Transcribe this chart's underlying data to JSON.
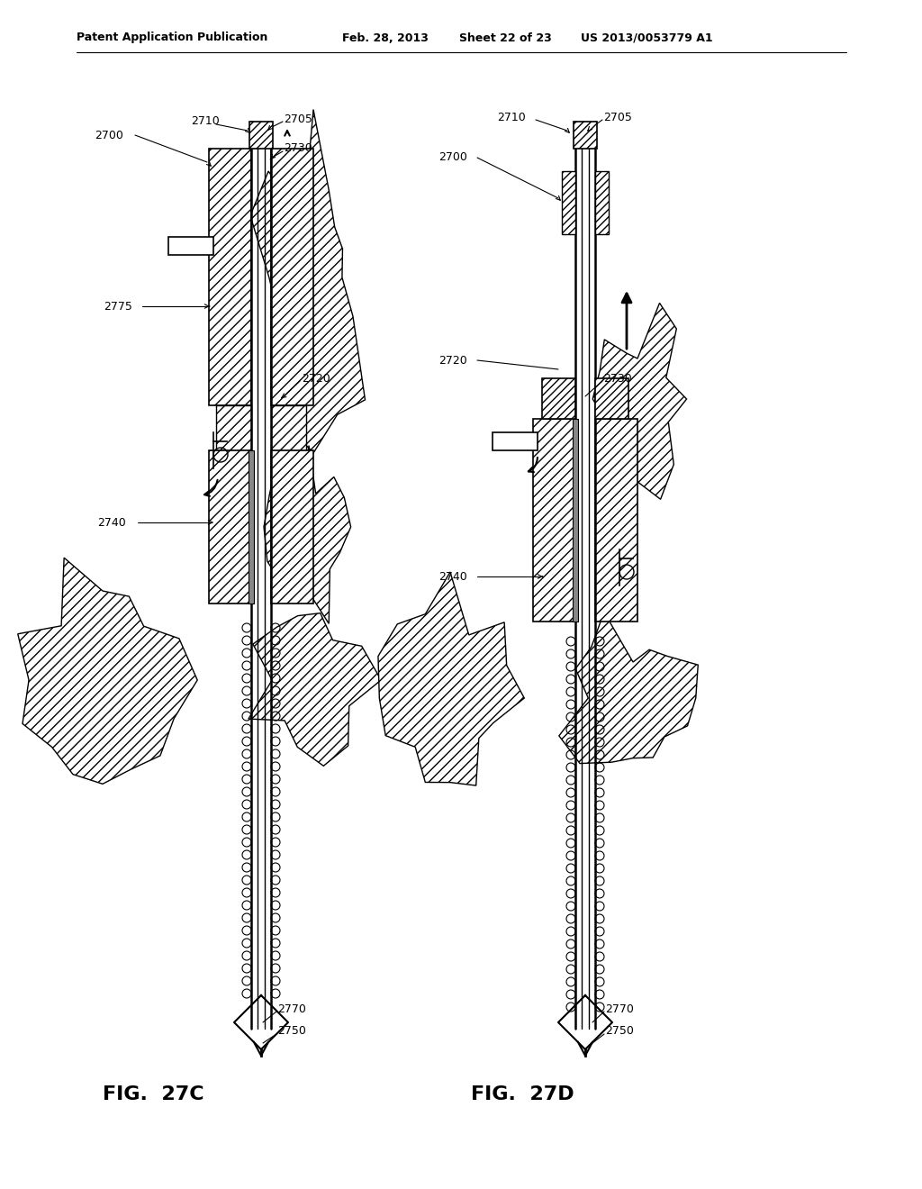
{
  "bg_color": "#ffffff",
  "header_text": "Patent Application Publication",
  "header_date": "Feb. 28, 2013",
  "header_sheet": "Sheet 22 of 23",
  "header_patent": "US 2013/0053779 A1",
  "fig_left_label": "FIG.  27C",
  "fig_right_label": "FIG.  27D",
  "line_color": "#000000",
  "hatch_color": "#000000"
}
